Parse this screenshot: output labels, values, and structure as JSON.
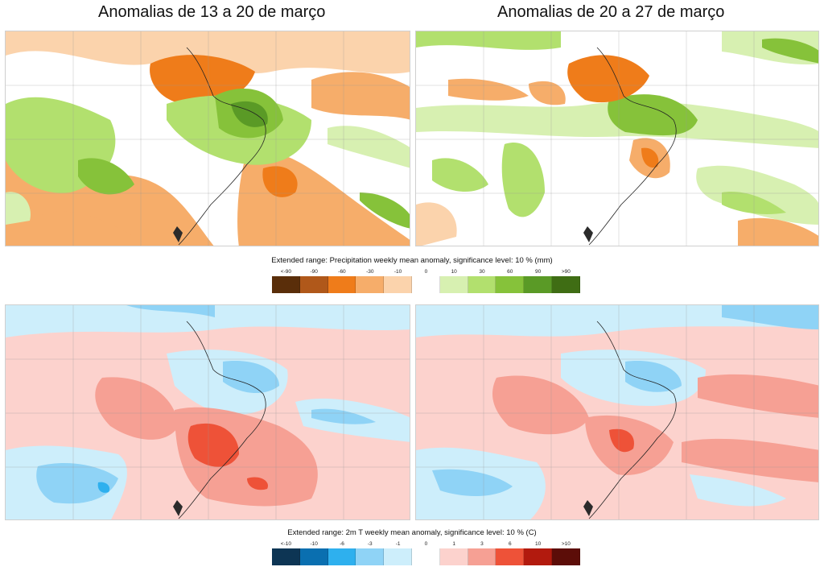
{
  "titles": {
    "left": "Anomalias de 13 a 20 de março",
    "right": "Anomalias de 20 a 27 de março"
  },
  "precipitation_legend": {
    "caption": "Extended range: Precipitation weekly mean anomaly, significance level: 10 % (mm)",
    "items": [
      {
        "label": "<-90",
        "color": "#5a2e0a"
      },
      {
        "label": "-90",
        "color": "#b0581a"
      },
      {
        "label": "-60",
        "color": "#ef7c1a"
      },
      {
        "label": "-30",
        "color": "#f6ad6a"
      },
      {
        "label": "-10",
        "color": "#fbd3ac"
      },
      {
        "label": "0",
        "color": "#ffffff"
      },
      {
        "label": "10",
        "color": "#d7f0b1"
      },
      {
        "label": "30",
        "color": "#b2e06e"
      },
      {
        "label": "60",
        "color": "#86c23a"
      },
      {
        "label": "90",
        "color": "#5a9a26"
      },
      {
        "label": ">90",
        "color": "#3f6d14"
      }
    ]
  },
  "temperature_legend": {
    "caption": "Extended range: 2m T weekly mean anomaly, significance level: 10 % (C)",
    "items": [
      {
        "label": "<-10",
        "color": "#0d3554"
      },
      {
        "label": "-10",
        "color": "#0a6fb0"
      },
      {
        "label": "-6",
        "color": "#2eb0ee"
      },
      {
        "label": "-3",
        "color": "#8fd3f6"
      },
      {
        "label": "-1",
        "color": "#cdeefb"
      },
      {
        "label": "0",
        "color": "#ffffff"
      },
      {
        "label": "1",
        "color": "#fcd2cd"
      },
      {
        "label": "3",
        "color": "#f6a094"
      },
      {
        "label": "6",
        "color": "#ee5238"
      },
      {
        "label": "10",
        "color": "#b21a0e"
      },
      {
        "label": ">10",
        "color": "#5c0d08"
      }
    ]
  },
  "maps": {
    "precip_week1": {
      "dominant": "mixed",
      "colors": [
        "#f6ad6a",
        "#ef7c1a",
        "#b2e06e",
        "#86c23a",
        "#5a9a26",
        "#fbd3ac",
        "#d7f0b1"
      ]
    },
    "precip_week2": {
      "dominant": "mixed",
      "colors": [
        "#f6ad6a",
        "#ef7c1a",
        "#b2e06e",
        "#86c23a",
        "#d7f0b1",
        "#fbd3ac"
      ]
    },
    "temp_week1": {
      "dominant": "warm",
      "colors": [
        "#fcd2cd",
        "#f6a094",
        "#ee5238",
        "#cdeefb",
        "#8fd3f6",
        "#2eb0ee"
      ]
    },
    "temp_week2": {
      "dominant": "warm",
      "colors": [
        "#fcd2cd",
        "#f6a094",
        "#ee5238",
        "#cdeefb",
        "#8fd3f6"
      ]
    }
  }
}
